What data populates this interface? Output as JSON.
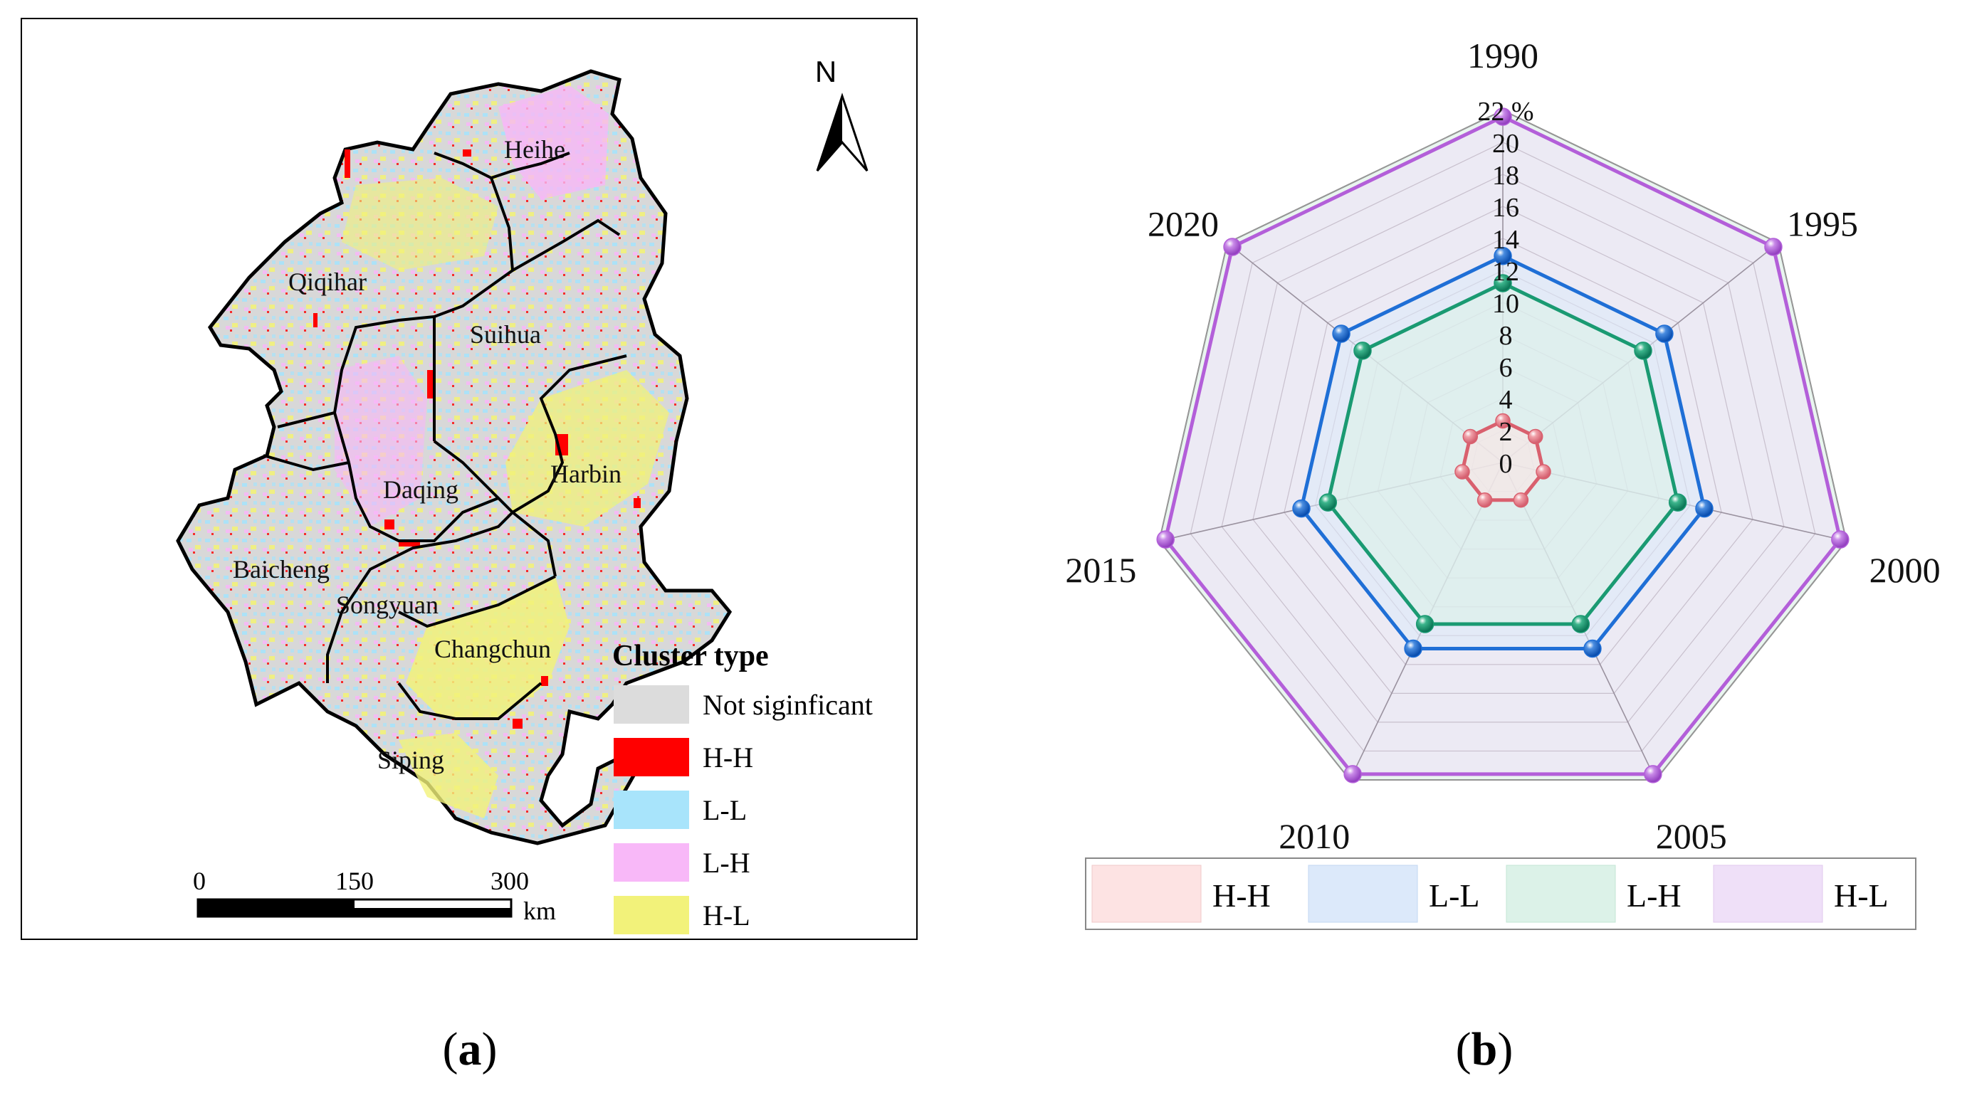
{
  "panel_a": {
    "caption_open": "(",
    "caption_letter": "a",
    "caption_close": ")",
    "north_label": "N",
    "regions": [
      "Heihe",
      "Qiqihar",
      "Suihua",
      "Daqing",
      "Harbin",
      "Baicheng",
      "Songyuan",
      "Changchun",
      "Siping"
    ],
    "legend": {
      "title": "Cluster type",
      "items": [
        {
          "label": "Not siginficant",
          "color": "#dcdcdc"
        },
        {
          "label": "H-H",
          "color": "#ff0000"
        },
        {
          "label": "L-L",
          "color": "#a8e4fb"
        },
        {
          "label": "L-H",
          "color": "#f8b8f8"
        },
        {
          "label": "H-L",
          "color": "#f2f27a"
        }
      ]
    },
    "scale_bar": {
      "ticks": [
        "0",
        "150",
        "300"
      ],
      "unit": "km"
    }
  },
  "panel_b": {
    "caption_open": "(",
    "caption_letter": "b",
    "caption_close": ")"
  },
  "chart_data": {
    "type": "radar",
    "categories": [
      "1990",
      "1995",
      "2000",
      "2005",
      "2010",
      "2015",
      "2020"
    ],
    "axis_range": [
      0,
      22
    ],
    "axis_ticks": [
      "0",
      "2",
      "4",
      "6",
      "8",
      "10",
      "12",
      "14",
      "16",
      "18",
      "20",
      "22 %"
    ],
    "grid": true,
    "legend_position": "bottom",
    "series": [
      {
        "name": "H-H",
        "color": "#d9606e",
        "fill": "#fde3e3",
        "values": [
          2.6,
          2.6,
          2.6,
          2.6,
          2.6,
          2.6,
          2.6
        ]
      },
      {
        "name": "L-L",
        "color": "#1f6fd6",
        "fill": "#dce9fa",
        "values": [
          12.9,
          12.9,
          12.9,
          12.9,
          12.9,
          12.9,
          12.9
        ]
      },
      {
        "name": "L-H",
        "color": "#1a9a72",
        "fill": "#dcf2e8",
        "values": [
          11.2,
          11.2,
          11.2,
          11.2,
          11.2,
          11.2,
          11.2
        ]
      },
      {
        "name": "H-L",
        "color": "#b35fd9",
        "fill": "#efe0f8",
        "values": [
          21.6,
          21.6,
          21.6,
          21.6,
          21.6,
          21.6,
          21.6
        ]
      }
    ]
  }
}
